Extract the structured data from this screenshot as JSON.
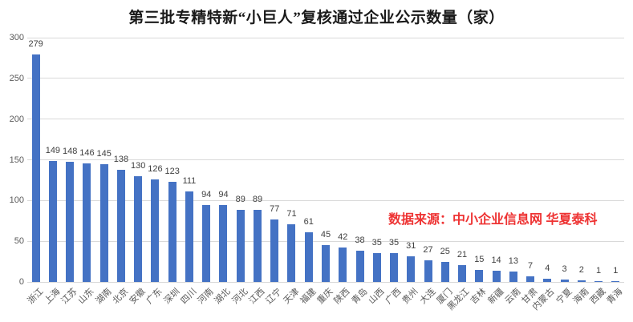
{
  "page": {
    "background": "#ffffff"
  },
  "colors": {
    "bar": "#4472c4",
    "gridline": "#d9d9d9",
    "axis_text": "#595959",
    "value_label_text": "#404040",
    "title_text": "#1a1a1a",
    "source_text": "#ee3333"
  },
  "chart_data": {
    "type": "bar",
    "title": "第三批专精特新“小巨人”复核通过企业公示数量（家）",
    "source_note": "数据来源：中小企业信息网 华夏泰科",
    "categories": [
      "浙江",
      "上海",
      "江苏",
      "山东",
      "湖南",
      "北京",
      "安徽",
      "广东",
      "深圳",
      "四川",
      "河南",
      "湖北",
      "河北",
      "江西",
      "辽宁",
      "天津",
      "福建",
      "重庆",
      "陕西",
      "青岛",
      "山西",
      "广西",
      "贵州",
      "大连",
      "厦门",
      "黑龙江",
      "吉林",
      "新疆",
      "云南",
      "甘肃",
      "内蒙古",
      "宁夏",
      "海南",
      "西藏",
      "青海"
    ],
    "values": [
      279,
      149,
      148,
      146,
      145,
      138,
      130,
      126,
      123,
      111,
      94,
      94,
      89,
      89,
      77,
      71,
      61,
      45,
      42,
      38,
      35,
      35,
      31,
      27,
      25,
      21,
      15,
      14,
      13,
      7,
      4,
      3,
      2,
      1,
      1
    ],
    "xlabel": "",
    "ylabel": "",
    "ylim": [
      0,
      300
    ],
    "ytick_step": 50,
    "yticks": [
      0,
      50,
      100,
      150,
      200,
      250,
      300
    ],
    "grid": true,
    "legend": false,
    "value_labels_shown": true,
    "bar_color": "#4472c4"
  }
}
